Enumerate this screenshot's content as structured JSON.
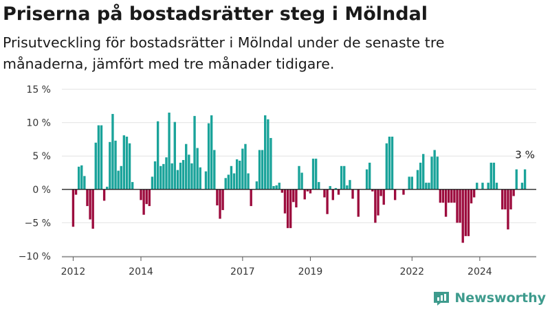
{
  "header": {
    "title": "Priserna på bostadsrätter steg i Mölndal",
    "subtitle": "Prisutveckling för bostadsrätter i Mölndal under de senaste tre månaderna, jämfört med tre månader tidigare."
  },
  "brand": {
    "name": "Newsworthy",
    "icon": "newsworthy-logo-icon",
    "color": "#3e9b8d"
  },
  "chart_data": {
    "type": "bar",
    "y_unit": "%",
    "ylim": [
      -10,
      15
    ],
    "yticks": [
      15,
      10,
      5,
      0,
      -5,
      -10
    ],
    "ytick_labels": [
      "15 %",
      "10 %",
      "5 %",
      "0 %",
      "−5 %",
      "−10 %"
    ],
    "grid": true,
    "xlim": [
      "2011-09",
      "2025-09"
    ],
    "xticks": [
      {
        "label": "2012",
        "x": "2012-01"
      },
      {
        "label": "2014",
        "x": "2014-01"
      },
      {
        "label": "2017",
        "x": "2017-01"
      },
      {
        "label": "2019",
        "x": "2019-01"
      },
      {
        "label": "2022",
        "x": "2022-01"
      },
      {
        "label": "2024",
        "x": "2024-01"
      }
    ],
    "positive_color": "#1aa39a",
    "negative_color": "#9c0b3d",
    "annotation": {
      "label": "3 %",
      "x": "2025-05",
      "y": 3
    },
    "series": [
      {
        "x": [
          "2012-01",
          "2012-02",
          "2012-03",
          "2012-04",
          "2012-05",
          "2012-06",
          "2012-07",
          "2012-08",
          "2012-09",
          "2012-10",
          "2012-11",
          "2012-12",
          "2013-01",
          "2013-02",
          "2013-03",
          "2013-04",
          "2013-05",
          "2013-06",
          "2013-07",
          "2013-08",
          "2013-09",
          "2013-10",
          "2013-11",
          "2013-12",
          "2014-01",
          "2014-02",
          "2014-03",
          "2014-04",
          "2014-05",
          "2014-06",
          "2014-07",
          "2014-08",
          "2014-09",
          "2014-10",
          "2014-11",
          "2014-12",
          "2015-01",
          "2015-02",
          "2015-03",
          "2015-04",
          "2015-05",
          "2015-06",
          "2015-07",
          "2015-08",
          "2015-09",
          "2015-10",
          "2015-11",
          "2015-12",
          "2016-01",
          "2016-02",
          "2016-03",
          "2016-04",
          "2016-05",
          "2016-06",
          "2016-07",
          "2016-08",
          "2016-09",
          "2016-10",
          "2016-11",
          "2016-12",
          "2017-01",
          "2017-02",
          "2017-03",
          "2017-04",
          "2017-05",
          "2017-06",
          "2017-07",
          "2017-08",
          "2017-09",
          "2017-10",
          "2017-11",
          "2017-12",
          "2018-01",
          "2018-02",
          "2018-03",
          "2018-04",
          "2018-05",
          "2018-06",
          "2018-07",
          "2018-08",
          "2018-09",
          "2018-10",
          "2018-11",
          "2018-12",
          "2019-01",
          "2019-02",
          "2019-03",
          "2019-04",
          "2019-05",
          "2019-06",
          "2019-07",
          "2019-08",
          "2019-09",
          "2019-10",
          "2019-11",
          "2019-12",
          "2020-01",
          "2020-02",
          "2020-03",
          "2020-04",
          "2020-05",
          "2020-06",
          "2020-07",
          "2020-08",
          "2020-09",
          "2020-10",
          "2020-11",
          "2020-12",
          "2021-01",
          "2021-02",
          "2021-03",
          "2021-04",
          "2021-05",
          "2021-06",
          "2021-07",
          "2021-08",
          "2021-09",
          "2021-10",
          "2021-11",
          "2021-12",
          "2022-01",
          "2022-02",
          "2022-03",
          "2022-04",
          "2022-05",
          "2022-06",
          "2022-07",
          "2022-08",
          "2022-09",
          "2022-10",
          "2022-11",
          "2022-12",
          "2023-01",
          "2023-02",
          "2023-03",
          "2023-04",
          "2023-05",
          "2023-06",
          "2023-07",
          "2023-08",
          "2023-09",
          "2023-10",
          "2023-11",
          "2023-12",
          "2024-01",
          "2024-02",
          "2024-03",
          "2024-04",
          "2024-05",
          "2024-06",
          "2024-07",
          "2024-08",
          "2024-09",
          "2024-10",
          "2024-11",
          "2024-12",
          "2025-01",
          "2025-02",
          "2025-03",
          "2025-04",
          "2025-05"
        ],
        "values": [
          -5.6,
          -0.8,
          3.4,
          3.6,
          2.0,
          -2.5,
          -4.5,
          -5.9,
          7.0,
          9.6,
          9.6,
          -1.7,
          0.4,
          7.1,
          11.3,
          7.3,
          2.8,
          3.5,
          8.1,
          7.9,
          6.9,
          1.1,
          0.0,
          0.0,
          -1.6,
          -3.8,
          -2.2,
          -2.5,
          1.9,
          4.2,
          10.2,
          3.5,
          3.8,
          4.8,
          11.5,
          3.9,
          10.1,
          2.9,
          4.0,
          4.4,
          6.8,
          5.2,
          3.9,
          11.0,
          6.2,
          3.3,
          0.0,
          2.7,
          9.9,
          11.1,
          5.9,
          -2.4,
          -4.4,
          -3.1,
          1.7,
          2.2,
          3.5,
          2.4,
          4.5,
          4.3,
          6.1,
          6.8,
          2.4,
          -2.5,
          0.0,
          1.2,
          5.9,
          5.9,
          11.1,
          10.5,
          7.7,
          0.5,
          0.6,
          1.0,
          -0.5,
          -3.6,
          -5.8,
          -5.8,
          -1.9,
          -2.7,
          3.5,
          2.5,
          -1.5,
          -0.3,
          -0.6,
          4.6,
          4.6,
          1.1,
          0.0,
          -1.2,
          -3.7,
          0.5,
          -1.6,
          0.2,
          -0.8,
          3.5,
          3.5,
          0.6,
          1.4,
          -1.4,
          0.0,
          -4.1,
          0.0,
          0.0,
          3.0,
          4.0,
          -0.3,
          -5.0,
          -3.9,
          -1.0,
          -2.3,
          6.9,
          7.9,
          7.9,
          -1.6,
          0.0,
          0.0,
          -0.8,
          0.0,
          1.9,
          1.9,
          0.0,
          2.9,
          4.0,
          5.3,
          1.0,
          1.0,
          4.9,
          5.9,
          4.9,
          -2.0,
          -2.0,
          -4.1,
          -2.0,
          -2.0,
          -2.0,
          -5.0,
          -5.0,
          -8.0,
          -7.0,
          -7.0,
          -2.1,
          -1.2,
          1.0,
          0.0,
          1.0,
          0.0,
          1.0,
          4.0,
          4.0,
          1.0,
          0.0,
          -3.0,
          -3.0,
          -6.0,
          -3.0,
          -1.0,
          3.0,
          0.0,
          1.0,
          3.0
        ]
      }
    ]
  }
}
